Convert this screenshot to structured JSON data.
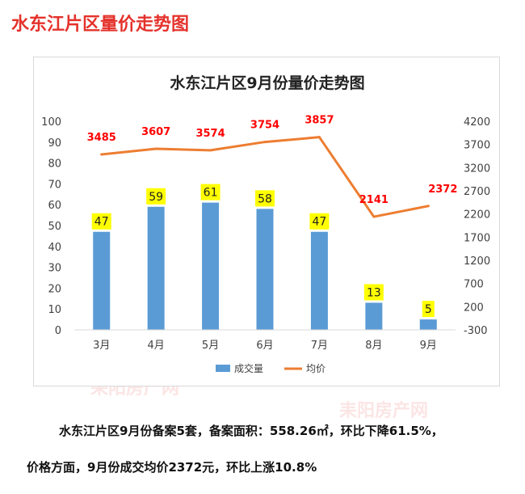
{
  "page": {
    "title": "水东江片区量价走势图",
    "caption_line1": "水东江片区9月份备案5套，备案面积：558.26㎡，环比下降61.5%，",
    "caption_line2": "价格方面，9月份成交均价2372元，环比上涨10.8%"
  },
  "watermark": {
    "text": "耒阳房产网",
    "url": "www.leiyangfc.com",
    "initials": "LYFC"
  },
  "colors": {
    "title": "#e4322b",
    "bar": "#5b9bd5",
    "line": "#ed7d31",
    "bar_label_bg": "#ffff00",
    "line_label": "#ff0000"
  },
  "chart_data": {
    "type": "bar",
    "title": "水东江片区9月份量价走势图",
    "categories": [
      "3月",
      "4月",
      "5月",
      "6月",
      "7月",
      "8月",
      "9月"
    ],
    "series": [
      {
        "name": "成交量",
        "type": "bar",
        "axis": "left",
        "values": [
          47,
          59,
          61,
          58,
          47,
          13,
          5
        ]
      },
      {
        "name": "均价",
        "type": "line",
        "axis": "right",
        "values": [
          3485,
          3607,
          3574,
          3754,
          3857,
          2141,
          2372
        ]
      }
    ],
    "left_axis": {
      "ylim": [
        0,
        100
      ],
      "ticks": [
        0,
        10,
        20,
        30,
        40,
        50,
        60,
        70,
        80,
        90,
        100
      ]
    },
    "right_axis": {
      "ylim": [
        -300,
        4200
      ],
      "ticks": [
        -300,
        200,
        700,
        1200,
        1700,
        2200,
        2700,
        3200,
        3700,
        4200
      ]
    },
    "grid": false,
    "legend": "bottom"
  }
}
